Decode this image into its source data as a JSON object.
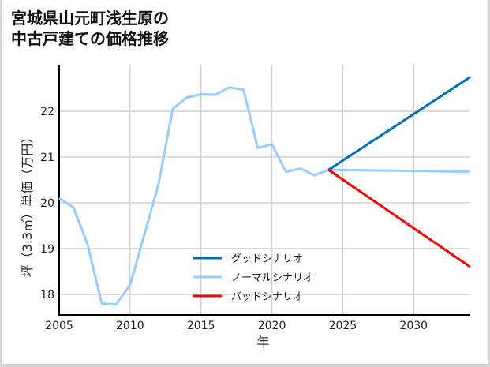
{
  "title_line1": "宮城県山元町浅生原の",
  "title_line2": "中古戸建ての価格推移",
  "chart_data": {
    "type": "line",
    "title": "宮城県山元町浅生原の中古戸建ての価格推移",
    "xlabel": "年",
    "ylabel": "坪（3.3㎡）単価（万円）",
    "xlim": [
      2005,
      2034
    ],
    "ylim": [
      17.55,
      23.0
    ],
    "xticks": [
      2005,
      2010,
      2015,
      2020,
      2025,
      2030
    ],
    "yticks": [
      18,
      19,
      20,
      21,
      22
    ],
    "grid": true,
    "legend_position": "lower center",
    "series": [
      {
        "name": "ノーマルシナリオ",
        "color": "#99ccff",
        "x": [
          2005,
          2006,
          2007,
          2008,
          2009,
          2010,
          2011,
          2012,
          2013,
          2014,
          2015,
          2016,
          2017,
          2018,
          2019,
          2020,
          2021,
          2022,
          2023,
          2024,
          2034
        ],
        "values": [
          20.1,
          19.9,
          19.1,
          17.8,
          17.78,
          18.2,
          19.3,
          20.4,
          22.05,
          22.3,
          22.37,
          22.36,
          22.52,
          22.47,
          21.2,
          21.28,
          20.68,
          20.75,
          20.6,
          20.72,
          20.68
        ]
      },
      {
        "name": "グッドシナリオ",
        "color": "#0070c0",
        "x": [
          2024,
          2034
        ],
        "values": [
          20.72,
          22.75
        ]
      },
      {
        "name": "バッドシナリオ",
        "color": "#ff0000",
        "x": [
          2024,
          2034
        ],
        "values": [
          20.72,
          18.6
        ]
      }
    ]
  },
  "legend": [
    {
      "label": "グッドシナリオ",
      "color": "#0070c0"
    },
    {
      "label": "ノーマルシナリオ",
      "color": "#99ccff"
    },
    {
      "label": "バッドシナリオ",
      "color": "#ff0000"
    }
  ],
  "axes": {
    "x_label": "年",
    "y_label": "坪（3.3㎡）単価（万円）",
    "x_ticks": [
      "2005",
      "2010",
      "2015",
      "2020",
      "2025",
      "2030"
    ],
    "y_ticks": [
      "18",
      "19",
      "20",
      "21",
      "22"
    ]
  }
}
